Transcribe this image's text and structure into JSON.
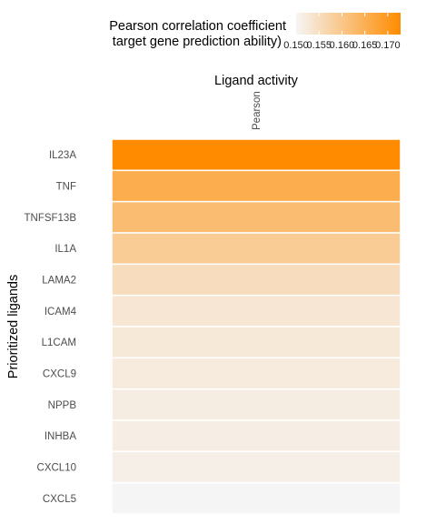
{
  "chart_data": {
    "type": "heatmap",
    "title": "Ligand activity",
    "xlabel": "",
    "ylabel": "Prioritized ligands",
    "columns": [
      "Pearson"
    ],
    "rows": [
      "IL23A",
      "TNF",
      "TNFSF13B",
      "IL1A",
      "LAMA2",
      "ICAM4",
      "L1CAM",
      "CXCL9",
      "NPPB",
      "INHBA",
      "CXCL10",
      "CXCL5"
    ],
    "values": [
      [
        0.1728
      ],
      [
        0.1655
      ],
      [
        0.1624
      ],
      [
        0.1588
      ],
      [
        0.1552
      ],
      [
        0.1532
      ],
      [
        0.1527
      ],
      [
        0.1522
      ],
      [
        0.1518
      ],
      [
        0.1515
      ],
      [
        0.1513
      ],
      [
        0.15
      ]
    ],
    "color_scale": {
      "low_color": "#f5f5f5",
      "high_color": "#ff8c00",
      "domain": [
        0.15,
        0.1728
      ]
    },
    "legend": {
      "title_lines": [
        "Pearson correlation coefficient",
        "target gene prediction ability)"
      ],
      "ticks": [
        0.15,
        0.155,
        0.16,
        0.165,
        0.17
      ],
      "tick_labels": [
        "0.150",
        "0.155",
        "0.160",
        "0.165",
        "0.170"
      ],
      "placement": "top"
    },
    "grid": false
  }
}
